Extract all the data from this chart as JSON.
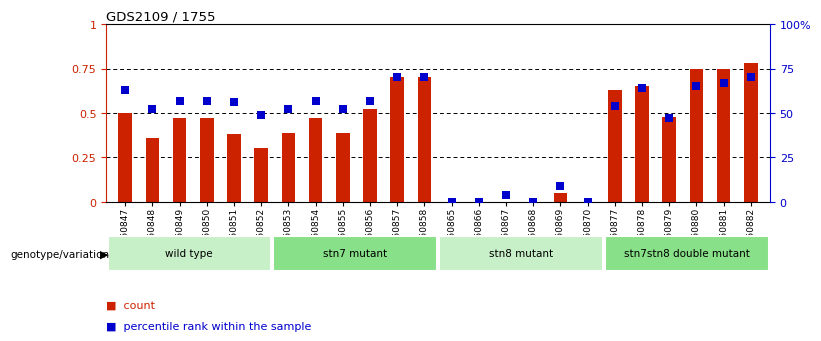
{
  "title": "GDS2109 / 1755",
  "samples": [
    "GSM50847",
    "GSM50848",
    "GSM50849",
    "GSM50850",
    "GSM50851",
    "GSM50852",
    "GSM50853",
    "GSM50854",
    "GSM50855",
    "GSM50856",
    "GSM50857",
    "GSM50858",
    "GSM50865",
    "GSM50866",
    "GSM50867",
    "GSM50868",
    "GSM50869",
    "GSM50870",
    "GSM50877",
    "GSM50878",
    "GSM50879",
    "GSM50880",
    "GSM50881",
    "GSM50882"
  ],
  "counts": [
    0.5,
    0.36,
    0.47,
    0.47,
    0.38,
    0.3,
    0.39,
    0.47,
    0.39,
    0.52,
    0.7,
    0.7,
    0.001,
    0.001,
    0.001,
    0.001,
    0.05,
    0.001,
    0.63,
    0.65,
    0.48,
    0.75,
    0.75,
    0.78
  ],
  "percentile": [
    0.63,
    0.52,
    0.57,
    0.57,
    0.56,
    0.49,
    0.52,
    0.57,
    0.52,
    0.57,
    0.7,
    0.7,
    0.001,
    0.001,
    0.04,
    0.001,
    0.09,
    0.001,
    0.54,
    0.64,
    0.47,
    0.65,
    0.67,
    0.7
  ],
  "groups": [
    {
      "label": "wild type",
      "start": 0,
      "end": 6,
      "color": "#c8f0c8"
    },
    {
      "label": "stn7 mutant",
      "start": 6,
      "end": 12,
      "color": "#90e090"
    },
    {
      "label": "stn8 mutant",
      "start": 12,
      "end": 18,
      "color": "#c8f0c8"
    },
    {
      "label": "stn7stn8 double mutant",
      "start": 18,
      "end": 24,
      "color": "#90e090"
    }
  ],
  "bar_color": "#cc2200",
  "dot_color": "#0000cc",
  "left_yticks": [
    0,
    0.25,
    0.5,
    0.75,
    1.0
  ],
  "left_yticklabels": [
    "0",
    "0.25",
    "0.5",
    "0.75",
    "1"
  ],
  "right_yticks": [
    0.0,
    0.25,
    0.5,
    0.75,
    1.0
  ],
  "right_yticklabels": [
    "0",
    "25",
    "50",
    "75",
    "100%"
  ]
}
